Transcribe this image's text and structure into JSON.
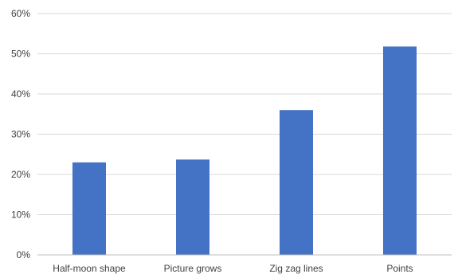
{
  "chart_data": {
    "type": "bar",
    "title": "",
    "xlabel": "",
    "ylabel": "",
    "categories": [
      "Half-moon shape",
      "Picture grows",
      "Zig zag lines",
      "Points"
    ],
    "values": [
      23,
      23.7,
      36,
      51.8
    ],
    "ylim": [
      0,
      60
    ],
    "yticks": [
      0,
      10,
      20,
      30,
      40,
      50,
      60
    ],
    "ytick_labels": [
      "0%",
      "10%",
      "20%",
      "30%",
      "40%",
      "50%",
      "60%"
    ],
    "grid": true,
    "legend": "none",
    "bar_color": "#4472c4"
  }
}
